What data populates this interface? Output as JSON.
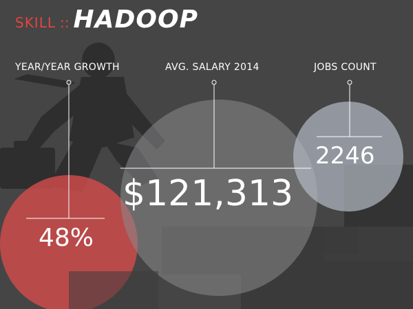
{
  "header": {
    "category": "SKILL",
    "separator": "::",
    "skill_name": "HADOOP"
  },
  "stats": [
    {
      "label": "YEAR/YEAR GROWTH",
      "value": "48%",
      "color": "#d24c4c"
    },
    {
      "label": "AVG. SALARY 2014",
      "value": "$121,313",
      "color": "#8a8a8c"
    },
    {
      "label": "JOBS COUNT",
      "value": "2246",
      "color": "#aab0bb"
    }
  ],
  "colors": {
    "background": "#454546",
    "accent": "#e0463f",
    "text": "#ffffff"
  }
}
